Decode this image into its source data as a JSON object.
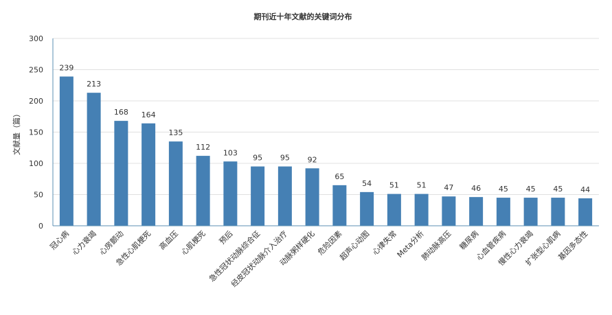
{
  "chart_data": {
    "type": "bar",
    "title": "期刊近十年文献的关键词分布",
    "xlabel": "",
    "ylabel": "文献量（篇）",
    "ylim": [
      0,
      300
    ],
    "yticks": [
      0,
      50,
      100,
      150,
      200,
      250,
      300
    ],
    "grid": true,
    "bar_color": "#4580b4",
    "categories": [
      "冠心病",
      "心力衰竭",
      "心房颤动",
      "急性心肌梗死",
      "高血压",
      "心肌梗死",
      "预后",
      "急性冠状动脉综合征",
      "经皮冠状动脉介入治疗",
      "动脉粥样硬化",
      "危险因素",
      "超声心动图",
      "心律失常",
      "Meta分析",
      "肺动脉高压",
      "糖尿病",
      "心血管疾病",
      "慢性心力衰竭",
      "扩张型心肌病",
      "基因多态性"
    ],
    "values": [
      239,
      213,
      168,
      164,
      135,
      112,
      103,
      95,
      95,
      92,
      65,
      54,
      51,
      51,
      47,
      46,
      45,
      45,
      45,
      44
    ]
  }
}
